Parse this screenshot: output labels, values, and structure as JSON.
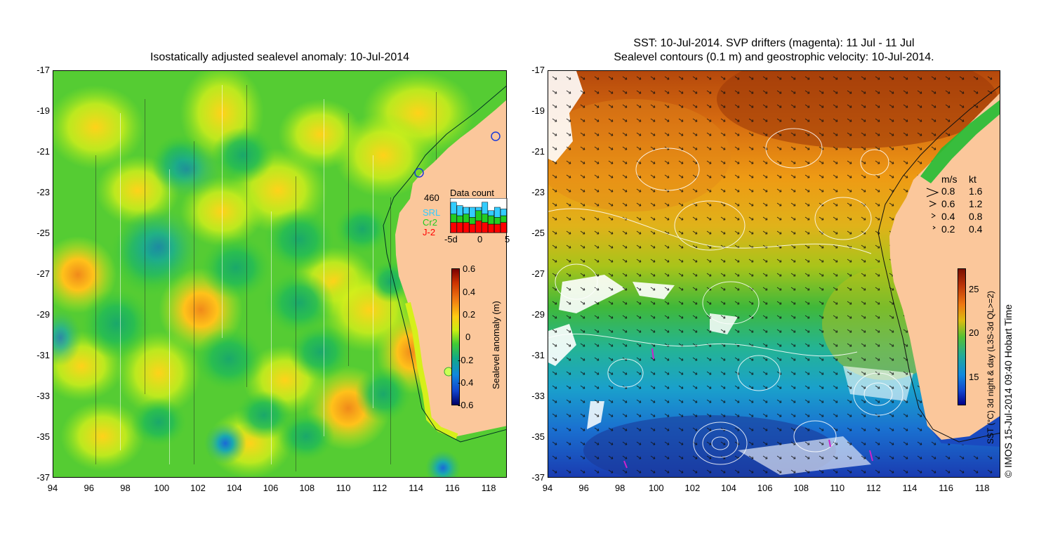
{
  "left_panel": {
    "title": "Isostatically adjusted sealevel anomaly: 10-Jul-2014",
    "y_ticks": [
      "-17",
      "-19",
      "-21",
      "-23",
      "-25",
      "-27",
      "-29",
      "-31",
      "-33",
      "-35",
      "-37"
    ],
    "x_ticks": [
      "94",
      "96",
      "98",
      "100",
      "102",
      "104",
      "106",
      "108",
      "110",
      "112",
      "114",
      "116",
      "118"
    ],
    "data_count": {
      "label": "Data count",
      "max_value": "460",
      "satellites": [
        {
          "name": "SRL",
          "color": "#33ccff"
        },
        {
          "name": "Cr2",
          "color": "#22cc22"
        },
        {
          "name": "J-2",
          "color": "#ff0000"
        }
      ],
      "x_ticks": [
        "-5d",
        "0",
        "5"
      ],
      "bars": [
        {
          "srl": 0.35,
          "cr2": 0.25,
          "j2": 0.3
        },
        {
          "srl": 0.3,
          "cr2": 0.2,
          "j2": 0.3
        },
        {
          "srl": 0.2,
          "cr2": 0.25,
          "j2": 0.3
        },
        {
          "srl": 0.3,
          "cr2": 0.2,
          "j2": 0.25
        },
        {
          "srl": 0.1,
          "cr2": 0.3,
          "j2": 0.35
        },
        {
          "srl": 0.35,
          "cr2": 0.25,
          "j2": 0.3
        },
        {
          "srl": 0.15,
          "cr2": 0.25,
          "j2": 0.25
        },
        {
          "srl": 0.3,
          "cr2": 0.2,
          "j2": 0.25
        },
        {
          "srl": 0.2,
          "cr2": 0.2,
          "j2": 0.3
        }
      ]
    },
    "colorbar": {
      "label": "Sealevel anomaly (m)",
      "ticks": [
        "0.6",
        "0.4",
        "0.2",
        "0",
        "-0.2",
        "-0.4",
        "-0.6"
      ]
    }
  },
  "right_panel": {
    "title_line1": "SST: 10-Jul-2014. SVP drifters (magenta): 11 Jul - 11 Jul",
    "title_line2": "Sealevel contours (0.1 m) and geostrophic velocity: 10-Jul-2014.",
    "y_ticks": [
      "-17",
      "-19",
      "-21",
      "-23",
      "-25",
      "-27",
      "-29",
      "-31",
      "-33",
      "-35",
      "-37"
    ],
    "x_ticks": [
      "94",
      "96",
      "98",
      "100",
      "102",
      "104",
      "106",
      "108",
      "110",
      "112",
      "114",
      "116",
      "118"
    ],
    "velocity_legend": {
      "header_ms": "m/s",
      "header_kt": "kt",
      "rows": [
        {
          "ms": "0.8",
          "kt": "1.6"
        },
        {
          "ms": "0.6",
          "kt": "1.2"
        },
        {
          "ms": "0.4",
          "kt": "0.8"
        },
        {
          "ms": "0.2",
          "kt": "0.4"
        }
      ]
    },
    "colorbar": {
      "label": "SST (°C) 3d night & day (L3S-3d QL>=2)",
      "ticks": [
        "25",
        "20",
        "15"
      ]
    },
    "credit": "© IMOS 15-Jul-2014 09:40 Hobart Time"
  },
  "colors": {
    "land": "#fbc79b",
    "sla_base": "#66dd22",
    "sst_warm": "#d96a10",
    "sst_cool": "#1a6fd0"
  }
}
